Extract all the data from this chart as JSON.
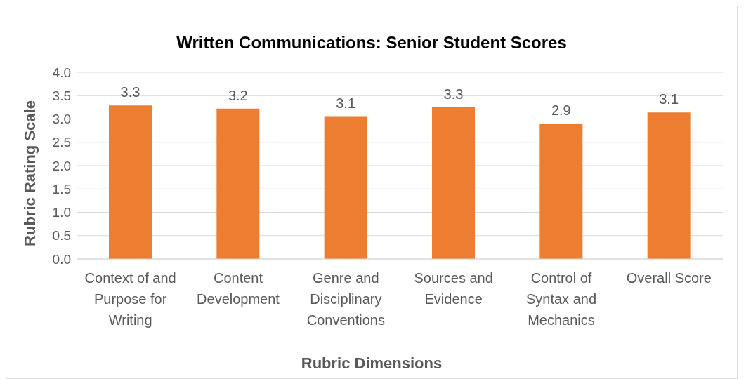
{
  "chart_data": {
    "type": "bar",
    "title": "Written Communications: Senior Student Scores",
    "xlabel": "Rubric Dimensions",
    "ylabel": "Rubric Rating Scale",
    "categories": [
      "Context of and Purpose for Writing",
      "Content Development",
      "Genre and Disciplinary Conventions",
      "Sources and Evidence",
      "Control of Syntax and Mechanics",
      "Overall Score"
    ],
    "values": [
      3.29,
      3.22,
      3.06,
      3.25,
      2.9,
      3.14
    ],
    "value_labels": [
      "3.3",
      "3.2",
      "3.1",
      "3.3",
      "2.9",
      "3.1"
    ],
    "color": "#ed7d31",
    "ylim": [
      0,
      4
    ],
    "yticks": [
      {
        "value": 0,
        "label": "0.0"
      },
      {
        "value": 0.5,
        "label": "0.5"
      },
      {
        "value": 1,
        "label": "1.0"
      },
      {
        "value": 1.5,
        "label": "1.5"
      },
      {
        "value": 2,
        "label": "2.0"
      },
      {
        "value": 2.5,
        "label": "2.5"
      },
      {
        "value": 3,
        "label": "3.0"
      },
      {
        "value": 3.5,
        "label": "3.5"
      },
      {
        "value": 4,
        "label": "4.0"
      }
    ],
    "grid": "y",
    "legend": false
  }
}
